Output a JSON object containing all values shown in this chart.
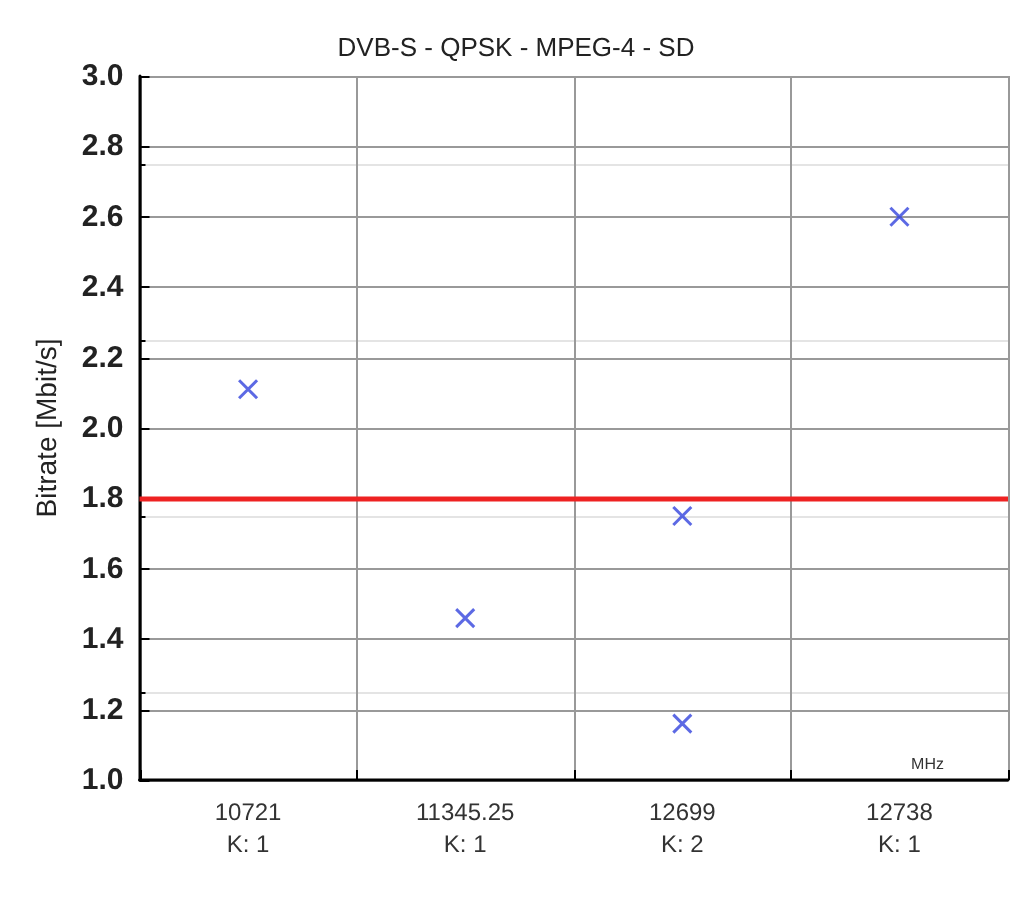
{
  "chart_data": {
    "type": "scatter",
    "title": "DVB-S - QPSK - MPEG-4 - SD",
    "xlabel": "MHz",
    "ylabel": "Bitrate [Mbit/s]",
    "categories": [
      "10721\nK: 1",
      "11345.25\nK: 1",
      "12699\nK: 2",
      "12738\nK: 1"
    ],
    "series": [
      {
        "color": "#3344dd",
        "x": [
          "10721\nK: 1",
          "11345.25\nK: 1",
          "12699\nK: 2",
          "12699\nK: 2",
          "12738\nK: 1"
        ],
        "values": [
          2.11,
          1.46,
          1.75,
          1.16,
          2.6
        ]
      }
    ],
    "ylim": [
      1.0,
      3.0
    ],
    "yticks": [
      {
        "value": 1.0,
        "label": "1.0"
      },
      1.2,
      1.4,
      1.6,
      1.8,
      {
        "value": 2.0,
        "label": "2.0"
      },
      2.2,
      2.4,
      2.6,
      2.8,
      {
        "value": 3.0,
        "label": "3.0"
      }
    ],
    "ref_lines": [
      {
        "axis": "y",
        "value": 1.8,
        "color": "#ee2222",
        "line_style": "solid"
      }
    ],
    "grid": true,
    "marker": "cross"
  }
}
